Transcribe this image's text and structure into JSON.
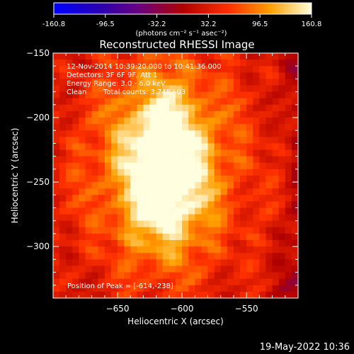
{
  "chart_data": {
    "type": "heatmap",
    "title": "Reconstructed RHESSI Image",
    "xlabel": "Heliocentric X (arcsec)",
    "ylabel": "Heliocentric Y (arcsec)",
    "xlim": [
      -700,
      -510
    ],
    "ylim": [
      -340,
      -150
    ],
    "x_ticks": [
      -650,
      -600,
      -550
    ],
    "y_ticks": [
      -150,
      -200,
      -250,
      -300
    ],
    "colorbar": {
      "ticks": [
        "-160.8",
        "-96.5",
        "-32.2",
        "32.2",
        "96.5",
        "160.8"
      ],
      "range": [
        -160.8,
        160.8
      ],
      "units_label": "(photons cm⁻² s⁻¹ asec⁻²)"
    },
    "info": {
      "time_range": "12-Nov-2014 10:39:20.000 to 10:41:36.000",
      "detectors": "Detectors: 3F 6F 9F, Att 1",
      "energy_range": "Energy Range: 3.0 - 6.0 keV",
      "algorithm": "Clean",
      "total_counts": "Total counts: 3.74E+03",
      "peak": "Position of Peak = [-614,-238]"
    },
    "peak_position": [
      -614,
      -238
    ]
  },
  "footer": {
    "timestamp": "19-May-2022 10:36"
  }
}
